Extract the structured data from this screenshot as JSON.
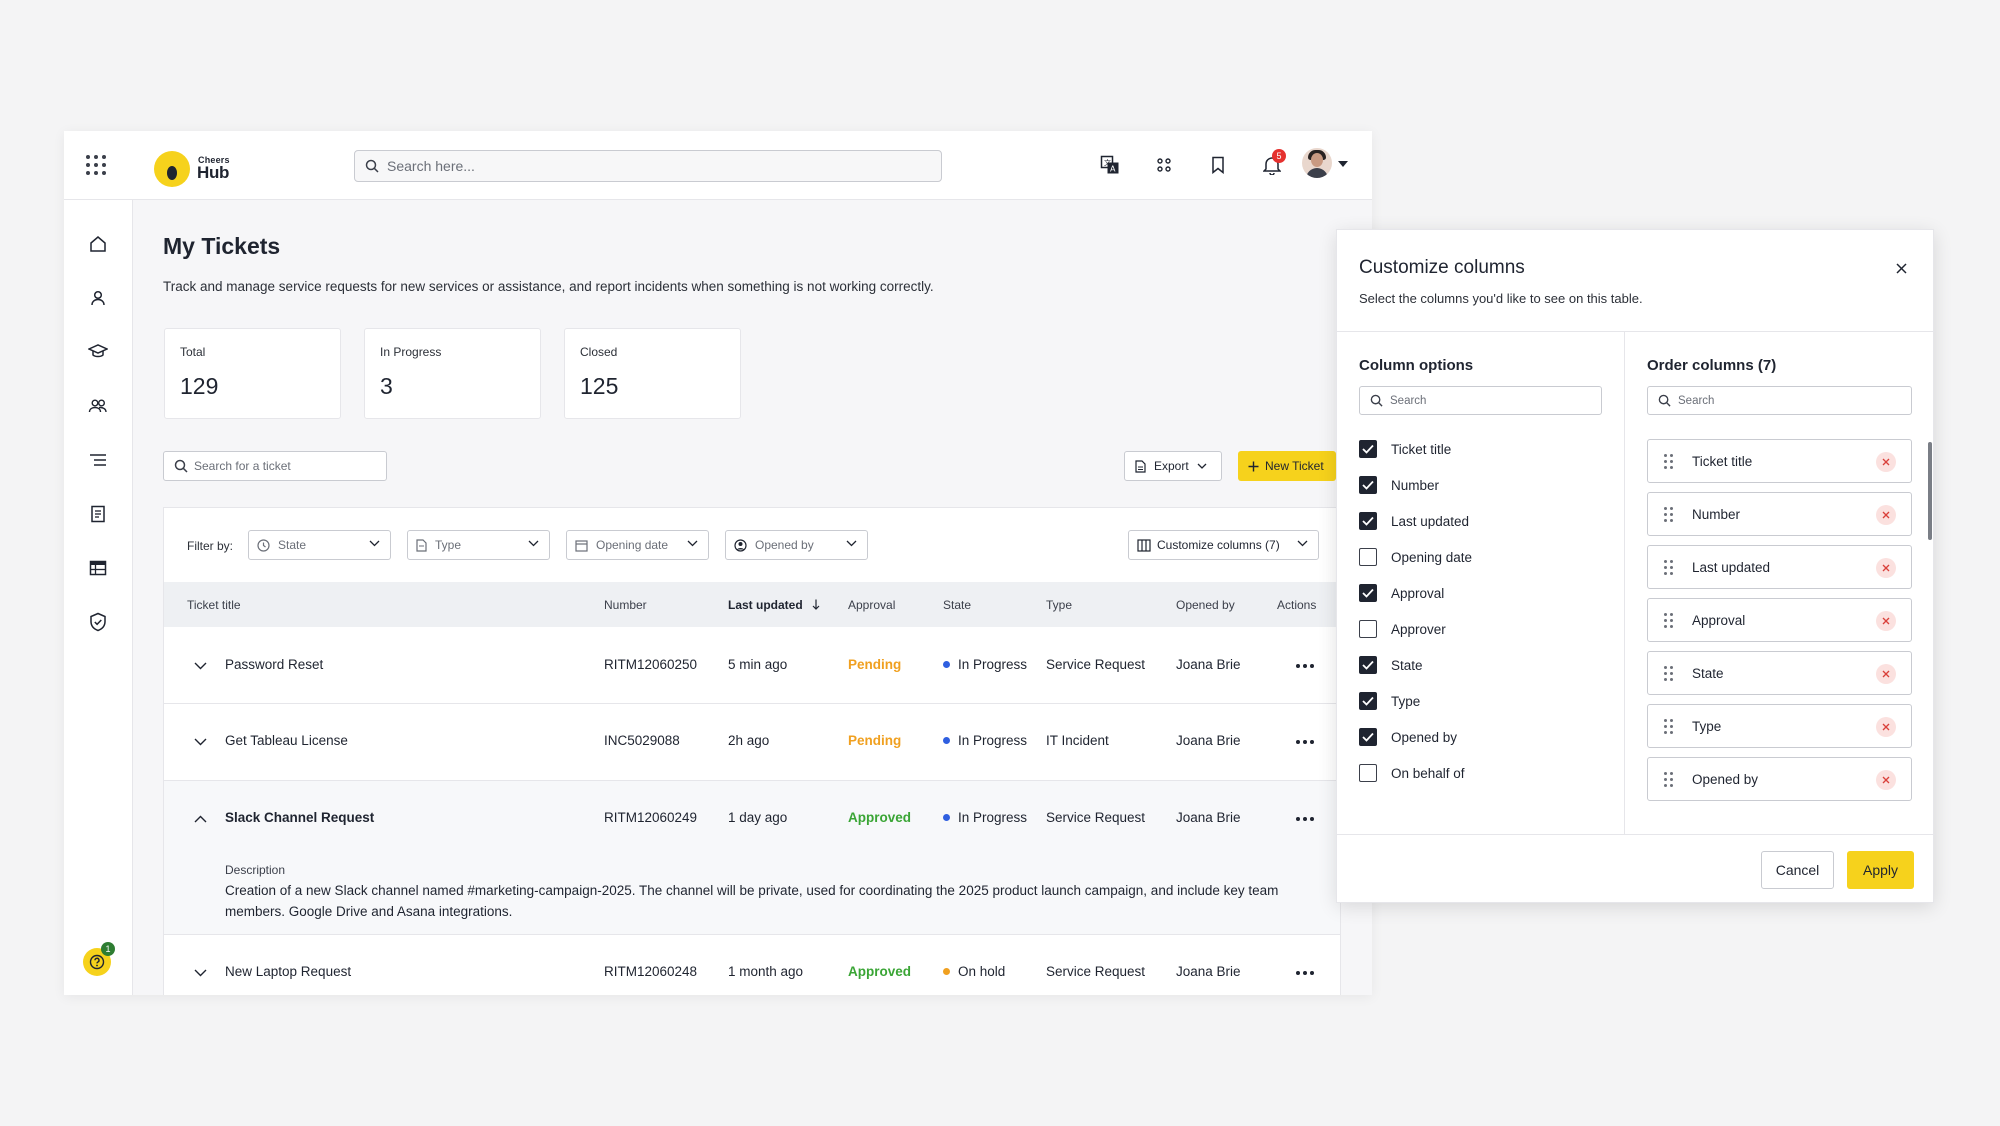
{
  "topbar": {
    "logo_small": "Cheers",
    "logo_big": "Hub",
    "search_placeholder": "Search here...",
    "notification_count": "5",
    "icons": [
      "apps-grid-icon",
      "translate-icon",
      "dots-grid-icon",
      "bookmark-icon",
      "bell-icon",
      "avatar"
    ]
  },
  "sidebar": {
    "icons": [
      "home-icon",
      "user-icon",
      "graduation-cap-icon",
      "team-icon",
      "list-icon",
      "document-icon",
      "table-icon",
      "shield-icon"
    ],
    "help_badge": "1"
  },
  "page": {
    "title": "My Tickets",
    "subtitle": "Track and manage service requests for new services or assistance, and report incidents when something is not working correctly."
  },
  "stats": [
    {
      "label": "Total",
      "value": "129"
    },
    {
      "label": "In Progress",
      "value": "3"
    },
    {
      "label": "Closed",
      "value": "125"
    }
  ],
  "toolbar": {
    "search_placeholder": "Search for a ticket",
    "export_label": "Export",
    "new_ticket_label": "New Ticket"
  },
  "filters": {
    "label": "Filter by:",
    "state": "State",
    "type": "Type",
    "opening_date": "Opening date",
    "opened_by": "Opened by",
    "customize_label": "Customize columns (7)"
  },
  "table": {
    "headers": {
      "title": "Ticket title",
      "number": "Number",
      "last_updated": "Last updated",
      "approval": "Approval",
      "state": "State",
      "type": "Type",
      "opened_by": "Opened by",
      "actions": "Actions"
    },
    "rows": [
      {
        "title": "Password Reset",
        "number": "RITM12060250",
        "updated": "5 min ago",
        "approval": "Pending",
        "state": "In Progress",
        "type": "Service Request",
        "opened_by": "Joana Brie"
      },
      {
        "title": "Get Tableau License",
        "number": "INC5029088",
        "updated": "2h ago",
        "approval": "Pending",
        "state": "In Progress",
        "type": "IT Incident",
        "opened_by": "Joana Brie"
      },
      {
        "title": "Slack Channel Request",
        "number": "RITM12060249",
        "updated": "1 day ago",
        "approval": "Approved",
        "state": "In Progress",
        "type": "Service Request",
        "opened_by": "Joana Brie",
        "description_label": "Description",
        "description": "Creation of a new Slack channel named #marketing-campaign-2025. The channel will be private, used for coordinating the 2025 product launch campaign, and include key team members. Google Drive and Asana integrations."
      },
      {
        "title": "New Laptop Request",
        "number": "RITM12060248",
        "updated": "1 month ago",
        "approval": "Approved",
        "state": "On hold",
        "type": "Service Request",
        "opened_by": "Joana Brie"
      }
    ],
    "colors": {
      "pending": "#f0a020",
      "approved": "#3aa535",
      "in_progress": "#2f5fe0",
      "on_hold": "#f0a020"
    }
  },
  "modal": {
    "title": "Customize columns",
    "subtitle": "Select the columns you'd like to see on this table.",
    "options_heading": "Column options",
    "order_heading": "Order columns (7)",
    "search_placeholder": "Search",
    "options": [
      {
        "label": "Ticket title",
        "checked": true
      },
      {
        "label": "Number",
        "checked": true
      },
      {
        "label": "Last updated",
        "checked": true
      },
      {
        "label": "Opening date",
        "checked": false
      },
      {
        "label": "Approval",
        "checked": true
      },
      {
        "label": "Approver",
        "checked": false
      },
      {
        "label": "State",
        "checked": true
      },
      {
        "label": "Type",
        "checked": true
      },
      {
        "label": "Opened by",
        "checked": true
      },
      {
        "label": "On behalf of",
        "checked": false
      }
    ],
    "order": [
      "Ticket title",
      "Number",
      "Last updated",
      "Approval",
      "State",
      "Type",
      "Opened by"
    ],
    "cancel_label": "Cancel",
    "apply_label": "Apply"
  }
}
